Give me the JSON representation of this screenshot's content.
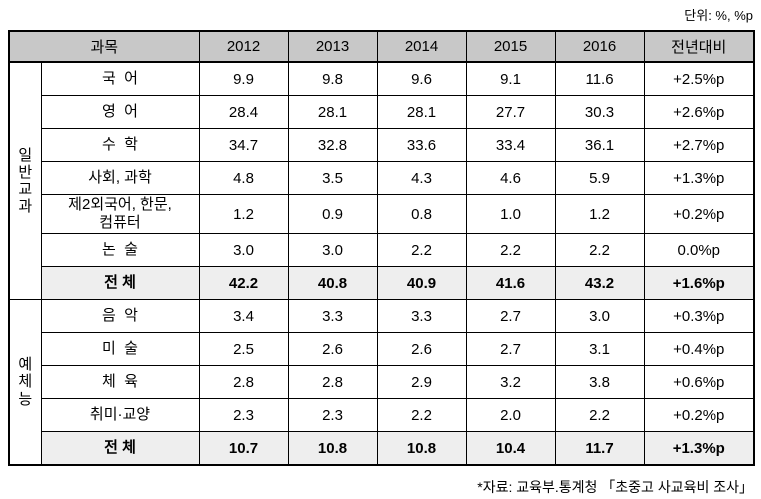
{
  "unit_label": "단위: %, %p",
  "footnote": "*자료: 교육부.통계청 「초중고 사교육비 조사」",
  "colors": {
    "header_bg": "#c8c8c8",
    "total_row_bg": "#eeeeee",
    "border": "#000000"
  },
  "chart_data": {
    "type": "table",
    "unit": "단위: %, %p",
    "source": "*자료: 교육부.통계청 「초중고 사교육비 조사」",
    "header": {
      "subject_col": "과목",
      "years": [
        "2012",
        "2013",
        "2014",
        "2015",
        "2016"
      ],
      "change_col": "전년대비"
    },
    "groups": [
      {
        "name": "일반교과",
        "rows": [
          {
            "subject": "국  어",
            "values": [
              "9.9",
              "9.8",
              "9.6",
              "9.1",
              "11.6"
            ],
            "change": "+2.5%p",
            "is_total": false
          },
          {
            "subject": "영  어",
            "values": [
              "28.4",
              "28.1",
              "28.1",
              "27.7",
              "30.3"
            ],
            "change": "+2.6%p",
            "is_total": false
          },
          {
            "subject": "수  학",
            "values": [
              "34.7",
              "32.8",
              "33.6",
              "33.4",
              "36.1"
            ],
            "change": "+2.7%p",
            "is_total": false
          },
          {
            "subject": "사회, 과학",
            "values": [
              "4.8",
              "3.5",
              "4.3",
              "4.6",
              "5.9"
            ],
            "change": "+1.3%p",
            "is_total": false
          },
          {
            "subject": "제2외국어, 한문,\n컴퓨터",
            "values": [
              "1.2",
              "0.9",
              "0.8",
              "1.0",
              "1.2"
            ],
            "change": "+0.2%p",
            "is_total": false
          },
          {
            "subject": "논  술",
            "values": [
              "3.0",
              "3.0",
              "2.2",
              "2.2",
              "2.2"
            ],
            "change": "0.0%p",
            "is_total": false
          },
          {
            "subject": "전 체",
            "values": [
              "42.2",
              "40.8",
              "40.9",
              "41.6",
              "43.2"
            ],
            "change": "+1.6%p",
            "is_total": true
          }
        ]
      },
      {
        "name": "예체능",
        "rows": [
          {
            "subject": "음  악",
            "values": [
              "3.4",
              "3.3",
              "3.3",
              "2.7",
              "3.0"
            ],
            "change": "+0.3%p",
            "is_total": false
          },
          {
            "subject": "미  술",
            "values": [
              "2.5",
              "2.6",
              "2.6",
              "2.7",
              "3.1"
            ],
            "change": "+0.4%p",
            "is_total": false
          },
          {
            "subject": "체  육",
            "values": [
              "2.8",
              "2.8",
              "2.9",
              "3.2",
              "3.8"
            ],
            "change": "+0.6%p",
            "is_total": false
          },
          {
            "subject": "취미·교양",
            "values": [
              "2.3",
              "2.3",
              "2.2",
              "2.0",
              "2.2"
            ],
            "change": "+0.2%p",
            "is_total": false
          },
          {
            "subject": "전 체",
            "values": [
              "10.7",
              "10.8",
              "10.8",
              "10.4",
              "11.7"
            ],
            "change": "+1.3%p",
            "is_total": true
          }
        ]
      }
    ]
  }
}
